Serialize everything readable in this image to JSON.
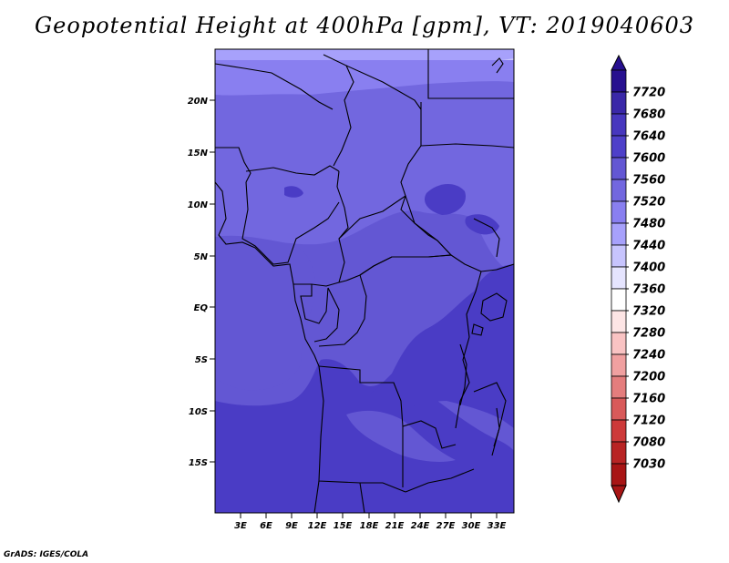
{
  "title": "Geopotential Height at 400hPa [gpm], VT: 2019040603",
  "credit": "GrADS: IGES/COLA",
  "map": {
    "lat_range": [
      -20,
      25
    ],
    "lon_range": [
      0,
      35
    ],
    "y_tick_labels": [
      "20N",
      "15N",
      "10N",
      "5N",
      "EQ",
      "5S",
      "10S",
      "15S"
    ],
    "x_tick_labels": [
      "3E",
      "6E",
      "9E",
      "12E",
      "15E",
      "18E",
      "21E",
      "24E",
      "27E",
      "30E",
      "33E"
    ]
  },
  "colorbar": {
    "labels": [
      "7720",
      "7680",
      "7640",
      "7600",
      "7560",
      "7520",
      "7480",
      "7440",
      "7400",
      "7360",
      "7320",
      "7280",
      "7240",
      "7200",
      "7160",
      "7120",
      "7080",
      "7030"
    ],
    "colors": [
      "#27108f",
      "#3a28a8",
      "#4737be",
      "#4e40c9",
      "#6357d3",
      "#7267df",
      "#897ff0",
      "#a7a1fb",
      "#c7c4fd",
      "#e5e4fe",
      "#ffffff",
      "#fde5e5",
      "#f9c3c3",
      "#f0a0a0",
      "#e47d7d",
      "#d85a5a",
      "#cd3a3a",
      "#b82424",
      "#a81515"
    ]
  },
  "field_colors": {
    "c7480": "#a7a1fb",
    "c7520": "#897ff0",
    "c7560": "#7267df",
    "c7600": "#6357d3",
    "c7640": "#4a3cc5"
  }
}
